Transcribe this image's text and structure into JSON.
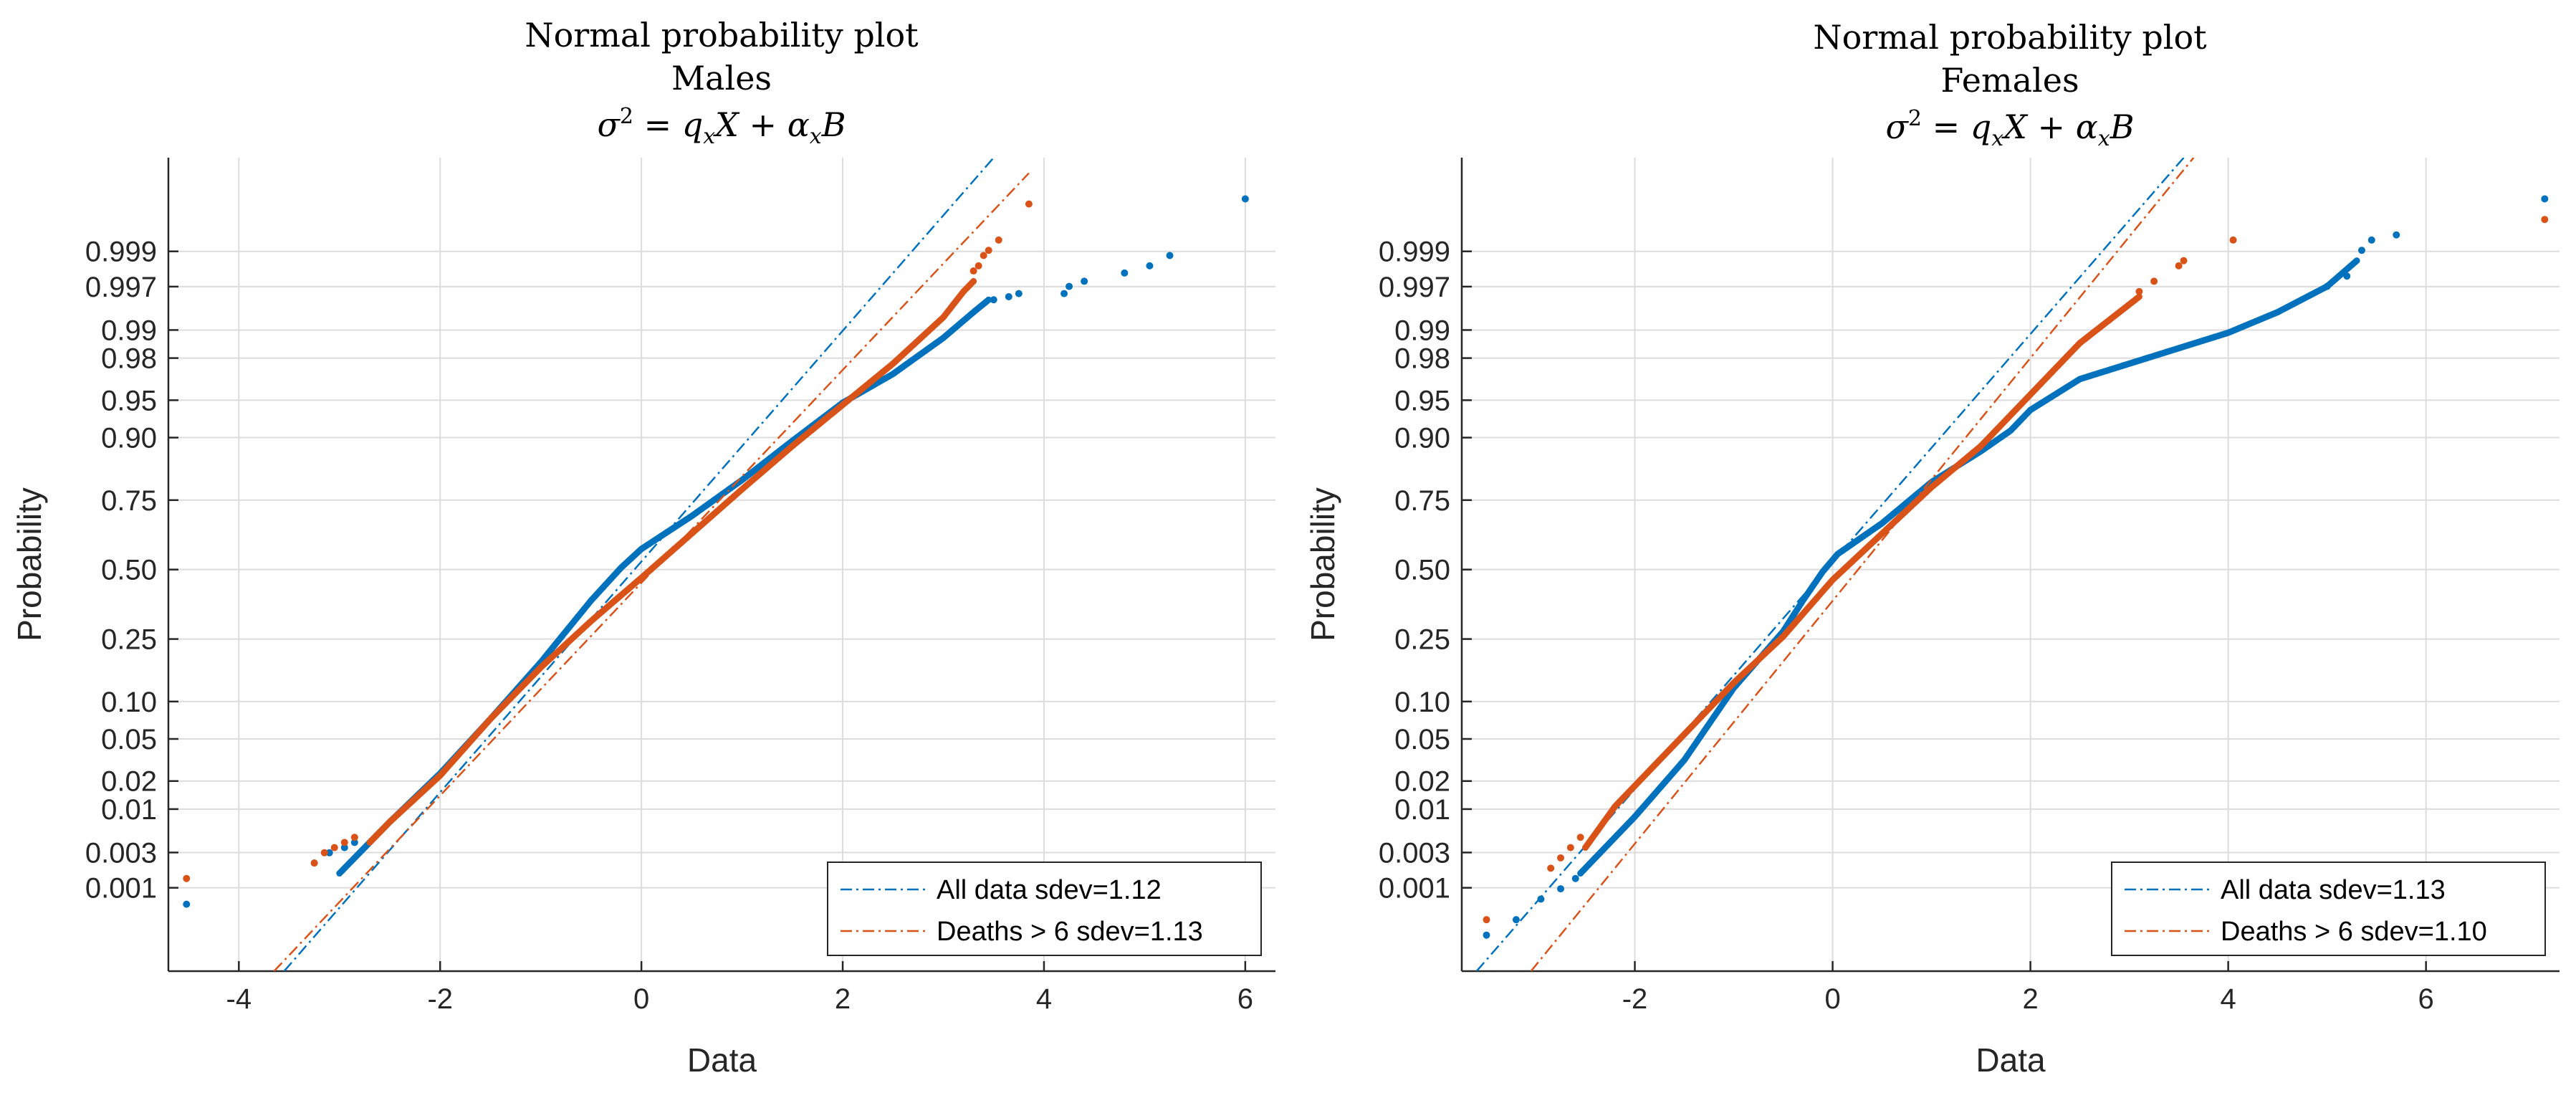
{
  "colors": {
    "all": "#0072BD",
    "deaths": "#D95319",
    "grid": "#DCDCDC",
    "axis": "#262626"
  },
  "chart_data": [
    {
      "type": "scatter",
      "title": [
        "Normal probability plot",
        "Males"
      ],
      "formula": {
        "sigma": "σ",
        "sq": "2",
        "eq": " = ",
        "q": "q",
        "x": "x",
        "X": "X",
        "plus": " + ",
        "alpha": "α",
        "B": "B"
      },
      "xlabel": "Data",
      "ylabel": "Probability",
      "xlim": [
        -4.7,
        6.3
      ],
      "xticks": [
        -4,
        -2,
        0,
        2,
        4,
        6
      ],
      "xtick_labels": [
        "-4",
        "-2",
        "0",
        "2",
        "4",
        "6"
      ],
      "zlim": [
        -3.9,
        4.0
      ],
      "prob_ticks": [
        0.001,
        0.003,
        0.01,
        0.02,
        0.05,
        0.1,
        0.25,
        0.5,
        0.75,
        0.9,
        0.95,
        0.98,
        0.99,
        0.997,
        0.999
      ],
      "prob_labels": [
        "0.001",
        "0.003",
        "0.01",
        "0.02",
        "0.05",
        "0.10",
        "0.25",
        "0.50",
        "0.75",
        "0.90",
        "0.95",
        "0.98",
        "0.99",
        "0.997",
        "0.999"
      ],
      "legend": [
        "All data sdev=1.12",
        "Deaths > 6 sdev=1.13"
      ],
      "legend_position": "bottom-right",
      "series": [
        {
          "name": "All data",
          "color_key": "all",
          "fit_line": [
            [
              -3.55,
              -3.9
            ],
            [
              3.5,
              4.0
            ]
          ],
          "curve": [
            [
              -3.0,
              -2.95
            ],
            [
              -2.5,
              -2.45
            ],
            [
              -2.0,
              -1.98
            ],
            [
              -1.5,
              -1.45
            ],
            [
              -1.0,
              -0.9
            ],
            [
              -0.5,
              -0.3
            ],
            [
              -0.2,
              0.02
            ],
            [
              0.0,
              0.2
            ],
            [
              0.5,
              0.52
            ],
            [
              1.0,
              0.87
            ],
            [
              1.5,
              1.25
            ],
            [
              2.0,
              1.62
            ],
            [
              2.5,
              1.9
            ],
            [
              3.0,
              2.25
            ],
            [
              3.3,
              2.5
            ],
            [
              3.45,
              2.62
            ]
          ],
          "points": [
            [
              -4.52,
              -3.25
            ],
            [
              -3.25,
              -2.85
            ],
            [
              -3.1,
              -2.75
            ],
            [
              -2.95,
              -2.7
            ],
            [
              -2.85,
              -2.65
            ],
            [
              3.5,
              2.62
            ],
            [
              3.65,
              2.65
            ],
            [
              3.75,
              2.68
            ],
            [
              4.2,
              2.68
            ],
            [
              4.25,
              2.75
            ],
            [
              4.4,
              2.8
            ],
            [
              4.8,
              2.88
            ],
            [
              5.05,
              2.95
            ],
            [
              5.25,
              3.05
            ],
            [
              6.0,
              3.6
            ]
          ]
        },
        {
          "name": "Deaths > 6",
          "color_key": "deaths",
          "fit_line": [
            [
              -3.65,
              -3.9
            ],
            [
              3.85,
              3.85
            ]
          ],
          "curve": [
            [
              -2.7,
              -2.65
            ],
            [
              -2.5,
              -2.45
            ],
            [
              -2.0,
              -2.0
            ],
            [
              -1.5,
              -1.45
            ],
            [
              -1.0,
              -0.95
            ],
            [
              -0.5,
              -0.5
            ],
            [
              0.0,
              -0.08
            ],
            [
              0.5,
              0.35
            ],
            [
              1.0,
              0.78
            ],
            [
              1.5,
              1.2
            ],
            [
              2.0,
              1.6
            ],
            [
              2.5,
              2.0
            ],
            [
              3.0,
              2.45
            ],
            [
              3.2,
              2.7
            ],
            [
              3.3,
              2.8
            ]
          ],
          "points": [
            [
              -4.52,
              -3.0
            ],
            [
              -3.25,
              -2.85
            ],
            [
              -3.15,
              -2.75
            ],
            [
              -3.05,
              -2.7
            ],
            [
              -2.95,
              -2.65
            ],
            [
              -2.85,
              -2.6
            ],
            [
              3.3,
              2.9
            ],
            [
              3.35,
              2.95
            ],
            [
              3.4,
              3.05
            ],
            [
              3.45,
              3.1
            ],
            [
              3.55,
              3.2
            ],
            [
              3.85,
              3.55
            ]
          ]
        }
      ]
    },
    {
      "type": "scatter",
      "title": [
        "Normal probability plot",
        "Females"
      ],
      "formula": {
        "sigma": "σ",
        "sq": "2",
        "eq": " = ",
        "q": "q",
        "x": "x",
        "X": "X",
        "plus": " + ",
        "alpha": "α",
        "B": "B"
      },
      "xlabel": "Data",
      "ylabel": "Probability",
      "xlim": [
        -3.75,
        7.35
      ],
      "xticks": [
        -2,
        0,
        2,
        4,
        6
      ],
      "xtick_labels": [
        "-2",
        "0",
        "2",
        "4",
        "6"
      ],
      "zlim": [
        -3.9,
        4.0
      ],
      "prob_ticks": [
        0.001,
        0.003,
        0.01,
        0.02,
        0.05,
        0.1,
        0.25,
        0.5,
        0.75,
        0.9,
        0.95,
        0.98,
        0.99,
        0.997,
        0.999
      ],
      "prob_labels": [
        "0.001",
        "0.003",
        "0.01",
        "0.02",
        "0.05",
        "0.10",
        "0.25",
        "0.50",
        "0.75",
        "0.90",
        "0.95",
        "0.98",
        "0.99",
        "0.997",
        "0.999"
      ],
      "legend": [
        "All data sdev=1.13",
        "Deaths > 6 sdev=1.10"
      ],
      "legend_position": "bottom-right",
      "series": [
        {
          "name": "All data",
          "color_key": "all",
          "fit_line": [
            [
              -3.6,
              -3.9
            ],
            [
              3.55,
              4.0
            ]
          ],
          "curve": [
            [
              -2.55,
              -2.95
            ],
            [
              -2.3,
              -2.7
            ],
            [
              -2.0,
              -2.4
            ],
            [
              -1.5,
              -1.85
            ],
            [
              -1.0,
              -1.15
            ],
            [
              -0.5,
              -0.6
            ],
            [
              -0.3,
              -0.3
            ],
            [
              -0.1,
              -0.02
            ],
            [
              0.05,
              0.15
            ],
            [
              0.5,
              0.45
            ],
            [
              1.0,
              0.85
            ],
            [
              1.5,
              1.15
            ],
            [
              1.8,
              1.35
            ],
            [
              2.0,
              1.55
            ],
            [
              2.5,
              1.85
            ],
            [
              3.0,
              2.0
            ],
            [
              3.5,
              2.15
            ],
            [
              4.0,
              2.3
            ],
            [
              4.5,
              2.5
            ],
            [
              5.0,
              2.75
            ],
            [
              5.3,
              3.0
            ]
          ],
          "points": [
            [
              -3.5,
              -3.55
            ],
            [
              -3.2,
              -3.4
            ],
            [
              -2.95,
              -3.2
            ],
            [
              -2.75,
              -3.1
            ],
            [
              -2.6,
              -3.0
            ],
            [
              5.0,
              2.75
            ],
            [
              5.2,
              2.85
            ],
            [
              5.35,
              3.1
            ],
            [
              5.45,
              3.2
            ],
            [
              5.7,
              3.25
            ],
            [
              7.2,
              3.6
            ]
          ]
        },
        {
          "name": "Deaths > 6",
          "color_key": "deaths",
          "fit_line": [
            [
              -3.05,
              -3.9
            ],
            [
              3.65,
              4.0
            ]
          ],
          "curve": [
            [
              -2.5,
              -2.7
            ],
            [
              -2.2,
              -2.3
            ],
            [
              -2.0,
              -2.1
            ],
            [
              -1.5,
              -1.6
            ],
            [
              -1.0,
              -1.1
            ],
            [
              -0.5,
              -0.65
            ],
            [
              0.0,
              -0.1
            ],
            [
              0.5,
              0.35
            ],
            [
              1.0,
              0.8
            ],
            [
              1.5,
              1.2
            ],
            [
              2.0,
              1.7
            ],
            [
              2.5,
              2.2
            ],
            [
              2.9,
              2.5
            ],
            [
              3.1,
              2.65
            ]
          ],
          "points": [
            [
              -3.5,
              -3.4
            ],
            [
              -2.85,
              -2.9
            ],
            [
              -2.75,
              -2.8
            ],
            [
              -2.65,
              -2.7
            ],
            [
              -2.55,
              -2.6
            ],
            [
              3.1,
              2.7
            ],
            [
              3.25,
              2.8
            ],
            [
              3.5,
              2.95
            ],
            [
              3.55,
              3.0
            ],
            [
              4.05,
              3.2
            ],
            [
              7.2,
              3.4
            ]
          ]
        }
      ]
    }
  ]
}
